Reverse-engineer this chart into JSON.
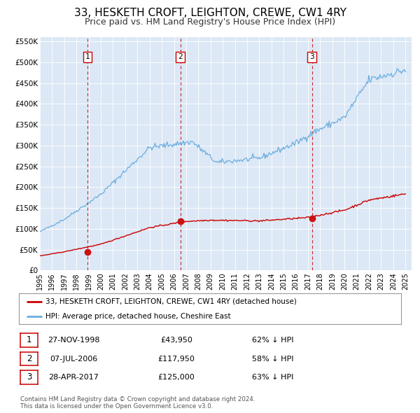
{
  "title": "33, HESKETH CROFT, LEIGHTON, CREWE, CW1 4RY",
  "subtitle": "Price paid vs. HM Land Registry's House Price Index (HPI)",
  "title_fontsize": 11,
  "subtitle_fontsize": 9,
  "background_color": "#ffffff",
  "plot_bg_color": "#dce8f5",
  "grid_color": "#ffffff",
  "hpi_color": "#6aade0",
  "price_color": "#cc0000",
  "ylim": [
    0,
    560000
  ],
  "yticks": [
    0,
    50000,
    100000,
    150000,
    200000,
    250000,
    300000,
    350000,
    400000,
    450000,
    500000,
    550000
  ],
  "ytick_labels": [
    "£0",
    "£50K",
    "£100K",
    "£150K",
    "£200K",
    "£250K",
    "£300K",
    "£350K",
    "£400K",
    "£450K",
    "£500K",
    "£550K"
  ],
  "xlim_start": 1995.0,
  "xlim_end": 2025.5,
  "xticks": [
    1995,
    1996,
    1997,
    1998,
    1999,
    2000,
    2001,
    2002,
    2003,
    2004,
    2005,
    2006,
    2007,
    2008,
    2009,
    2010,
    2011,
    2012,
    2013,
    2014,
    2015,
    2016,
    2017,
    2018,
    2019,
    2020,
    2021,
    2022,
    2023,
    2024,
    2025
  ],
  "sale_dates": [
    1998.9,
    2006.52,
    2017.32
  ],
  "sale_prices": [
    43950,
    117950,
    125000
  ],
  "sale_labels": [
    "1",
    "2",
    "3"
  ],
  "legend_property_label": "33, HESKETH CROFT, LEIGHTON, CREWE, CW1 4RY (detached house)",
  "legend_hpi_label": "HPI: Average price, detached house, Cheshire East",
  "table_rows": [
    {
      "num": "1",
      "date": "27-NOV-1998",
      "price": "£43,950",
      "pct": "62% ↓ HPI"
    },
    {
      "num": "2",
      "date": "07-JUL-2006",
      "price": "£117,950",
      "pct": "58% ↓ HPI"
    },
    {
      "num": "3",
      "date": "28-APR-2017",
      "price": "£125,000",
      "pct": "63% ↓ HPI"
    }
  ],
  "footnote": "Contains HM Land Registry data © Crown copyright and database right 2024.\nThis data is licensed under the Open Government Licence v3.0."
}
